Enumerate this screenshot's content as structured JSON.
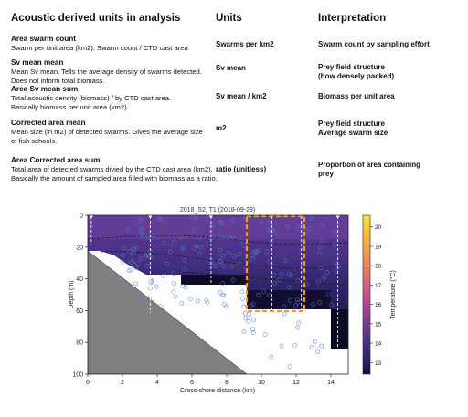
{
  "table": {
    "headers": {
      "col1": "Acoustic derived units in analysis",
      "col2": "Units",
      "col3": "Interpretation"
    },
    "rows": [
      {
        "title": "Area swarm count",
        "desc": [
          "Swarm per unit area (km2). Swarm count / CTD cast area"
        ],
        "unit": "Swarms per km2",
        "interp": [
          "Swarm count by sampling effort"
        ]
      },
      {
        "title": "Sv mean mean",
        "desc": [
          "Mean Sv mean. Tells the average density of swarms detected.",
          "Does not inform total biomass."
        ],
        "unit": "Sv mean",
        "interp": [
          "Prey field structure",
          "(how densely packed)"
        ]
      },
      {
        "title": "Area Sv mean sum",
        "desc": [
          "Total acoustic density (biomass) / by CTD cast area.",
          "Basically biomass per unit area (km2)."
        ],
        "unit": "Sv mean / km2",
        "interp": [
          "Biomass per unit area"
        ]
      },
      {
        "title": "Corrected area mean",
        "desc": [
          "Mean size (in m2) of detected swarms. Gives the average size",
          "of fish schools."
        ],
        "unit": "m2",
        "interp": [
          "Prey field structure",
          "Average swarm size"
        ]
      },
      {
        "title": "Area Corrected area sum",
        "desc": [
          "Total area of detected swarms divied by the CTD cast area (km2).",
          "Basically the amount of sampled area filled with biomass as a ratio."
        ],
        "unit": "ratio (unitless)",
        "interp": [
          "Proportion of area containing",
          "prey"
        ]
      }
    ]
  },
  "chart_data": {
    "type": "heatmap",
    "title": "2018_S2, T1 (2018-09-28)",
    "xlabel": "Cross-shore distance (km)",
    "ylabel": "Depth (m)",
    "xlim": [
      0,
      15
    ],
    "ylim": [
      100,
      0
    ],
    "xticks": [
      "0",
      "2",
      "4",
      "6",
      "8",
      "10",
      "12",
      "14"
    ],
    "yticks": [
      "0",
      "20",
      "40",
      "60",
      "80",
      "100"
    ],
    "colorbar": {
      "label": "Temperature (°C)",
      "range": [
        12.4,
        20.6
      ],
      "ticks": [
        "13",
        "14",
        "15",
        "16",
        "17",
        "18",
        "19",
        "20"
      ],
      "colors": [
        "#14103a",
        "#3b2a78",
        "#6a3a8f",
        "#a94a8f",
        "#d9627a",
        "#f08a58",
        "#f7b640",
        "#f5e63a"
      ]
    },
    "ctd_stations_km": [
      0.2,
      3.6,
      7.1,
      10.6,
      12.3,
      14.4
    ],
    "highlight_box_km": [
      10.0,
      12.5
    ],
    "highlight_box_depth": [
      0,
      60
    ],
    "highlight_color": "#f39c12",
    "bathymetry_color": "#808080",
    "swarm_marker_color": "#4a7fd4",
    "seabed_depth_by_km": [
      [
        0,
        23
      ],
      [
        1,
        40
      ],
      [
        2,
        52
      ],
      [
        3,
        60
      ],
      [
        4,
        68
      ],
      [
        5,
        76
      ],
      [
        6,
        84
      ],
      [
        7,
        92
      ],
      [
        8,
        100
      ]
    ]
  }
}
